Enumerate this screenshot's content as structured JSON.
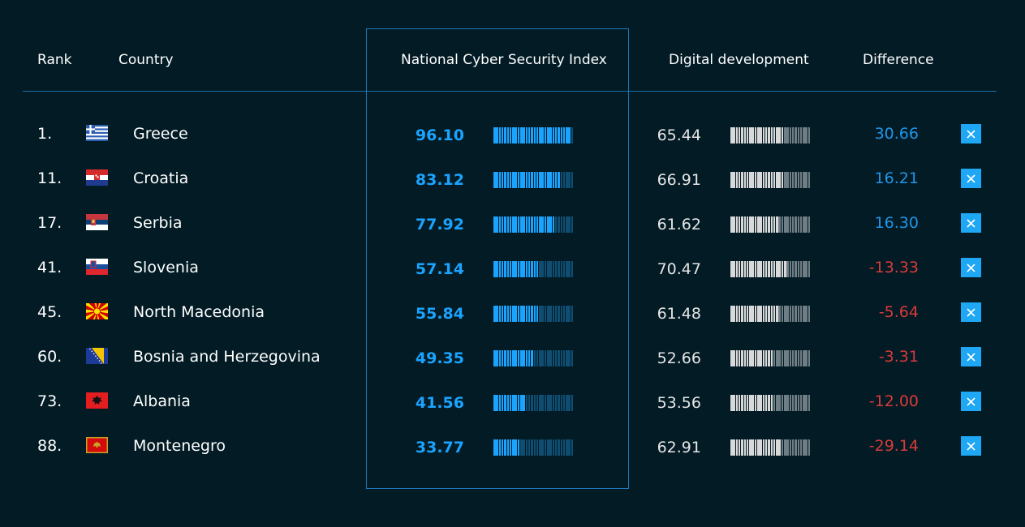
{
  "headers": {
    "rank": "Rank",
    "country": "Country",
    "ncsi": "National Cyber Security Index",
    "digital": "Digital development",
    "difference": "Difference"
  },
  "colors": {
    "ncsi_fill": "#1aa3ff",
    "ncsi_empty": "#0f4e72",
    "dd_fill": "#d9d9d9",
    "dd_empty": "#6f7d84",
    "positive": "#1e96ea",
    "negative": "#d93a3a"
  },
  "rows": [
    {
      "rank": "1.",
      "country": "Greece",
      "flag": "greece",
      "ncsi": "96.10",
      "digital": "65.44",
      "difference": "30.66",
      "positive": true
    },
    {
      "rank": "11.",
      "country": "Croatia",
      "flag": "croatia",
      "ncsi": "83.12",
      "digital": "66.91",
      "difference": "16.21",
      "positive": true
    },
    {
      "rank": "17.",
      "country": "Serbia",
      "flag": "serbia",
      "ncsi": "77.92",
      "digital": "61.62",
      "difference": "16.30",
      "positive": true
    },
    {
      "rank": "41.",
      "country": "Slovenia",
      "flag": "slovenia",
      "ncsi": "57.14",
      "digital": "70.47",
      "difference": "-13.33",
      "positive": false
    },
    {
      "rank": "45.",
      "country": "North Macedonia",
      "flag": "north-macedonia",
      "ncsi": "55.84",
      "digital": "61.48",
      "difference": "-5.64",
      "positive": false
    },
    {
      "rank": "60.",
      "country": "Bosnia and Herzegovina",
      "flag": "bosnia",
      "ncsi": "49.35",
      "digital": "52.66",
      "difference": "-3.31",
      "positive": false
    },
    {
      "rank": "73.",
      "country": "Albania",
      "flag": "albania",
      "ncsi": "41.56",
      "digital": "53.56",
      "difference": "-12.00",
      "positive": false
    },
    {
      "rank": "88.",
      "country": "Montenegro",
      "flag": "montenegro",
      "ncsi": "33.77",
      "digital": "62.91",
      "difference": "-29.14",
      "positive": false
    }
  ]
}
